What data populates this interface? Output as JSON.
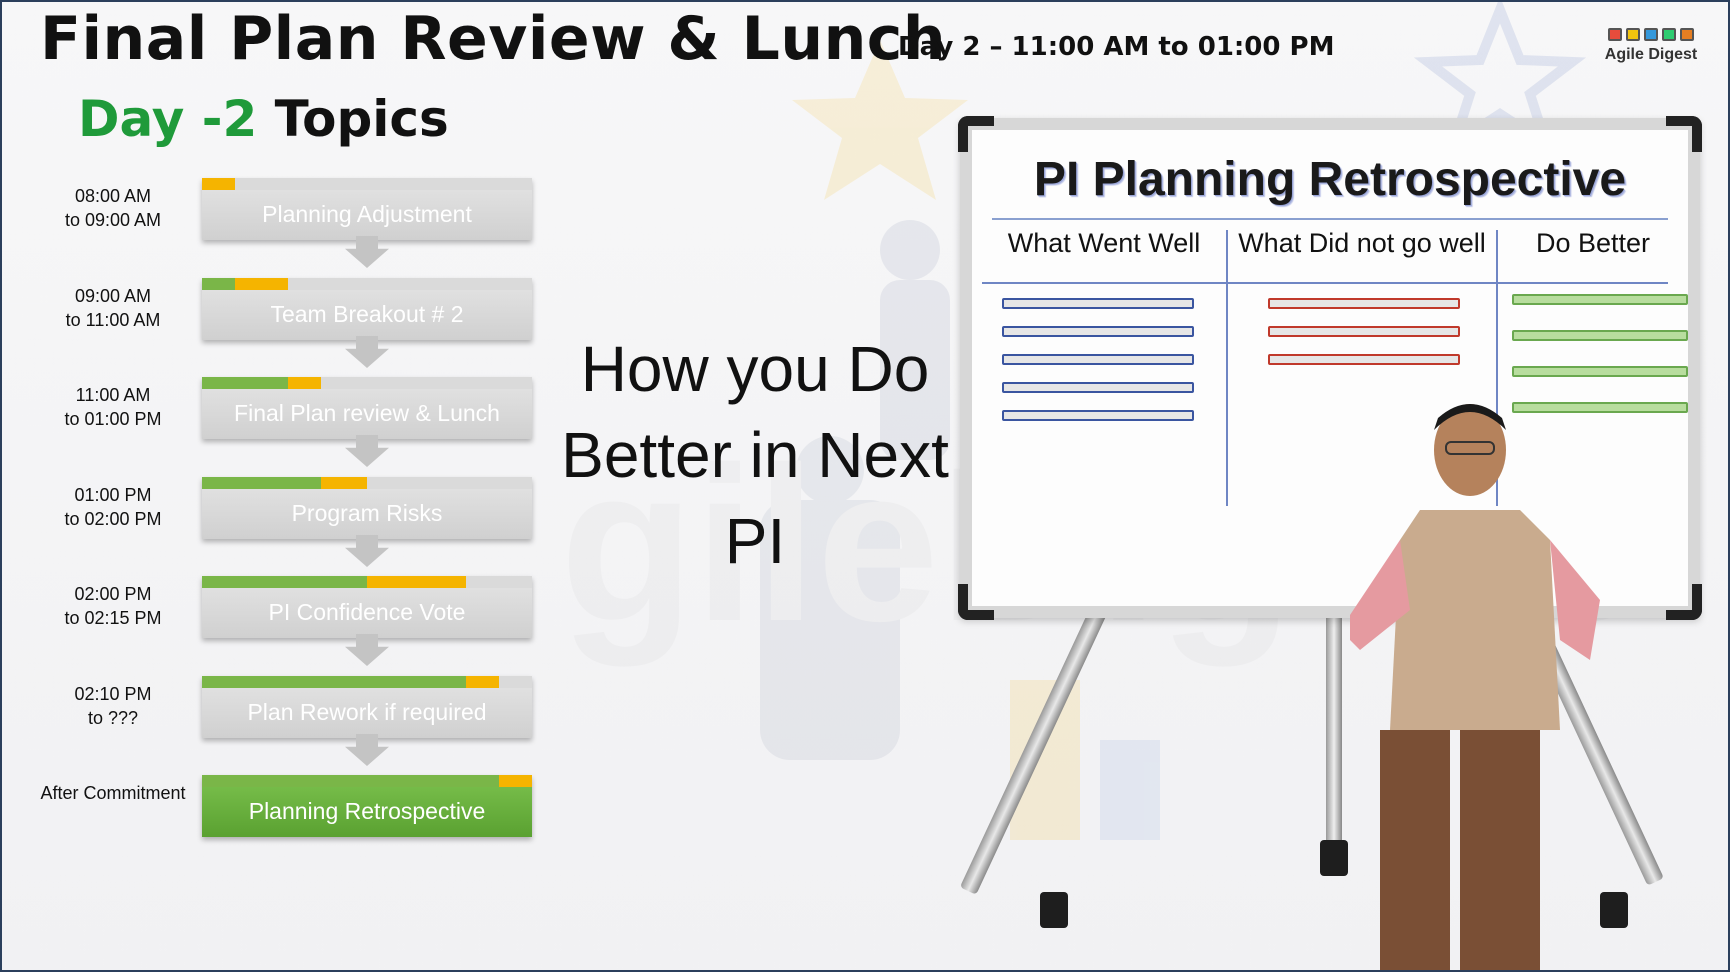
{
  "header": {
    "title": "Final Plan Review & Lunch",
    "session_time": "Day 2 – 11:00 AM to 01:00 PM",
    "brand": "Agile Digest"
  },
  "agenda": {
    "title_highlight": "Day -2",
    "title_rest": " Topics",
    "colors": {
      "done": "#7ab648",
      "current": "#f5b400",
      "pending": "#dadada",
      "active_box": "#6aad3d"
    },
    "items": [
      {
        "time1": "08:00 AM",
        "time2": "to 09:00 AM",
        "label": "Planning Adjustment",
        "done": 0.0,
        "current": 0.1
      },
      {
        "time1": "09:00 AM",
        "time2": "to 11:00 AM",
        "label": "Team Breakout # 2",
        "done": 0.1,
        "current": 0.26
      },
      {
        "time1": "11:00 AM",
        "time2": "to 01:00 PM",
        "label": "Final Plan review & Lunch",
        "done": 0.26,
        "current": 0.36
      },
      {
        "time1": "01:00 PM",
        "time2": "to 02:00 PM",
        "label": "Program Risks",
        "done": 0.36,
        "current": 0.5
      },
      {
        "time1": "02:00 PM",
        "time2": "to 02:15 PM",
        "label": "PI Confidence Vote",
        "done": 0.5,
        "current": 0.8
      },
      {
        "time1": "02:10 PM",
        "time2": "to ???",
        "label": "Plan Rework if required",
        "done": 0.8,
        "current": 0.9
      },
      {
        "time1": "After Commitment",
        "time2": "",
        "label": "Planning Retrospective",
        "done": 0.9,
        "current": 1.0,
        "active": true
      }
    ]
  },
  "slide_text": {
    "line1": "How you Do",
    "line2": "Better in Next",
    "line3": "PI"
  },
  "whiteboard": {
    "title": "PI Planning Retrospective",
    "columns": [
      "What Went Well",
      "What Did not go well",
      "Do Better"
    ],
    "line_counts": {
      "went_well": 5,
      "not_well": 3,
      "do_better": 4
    }
  }
}
